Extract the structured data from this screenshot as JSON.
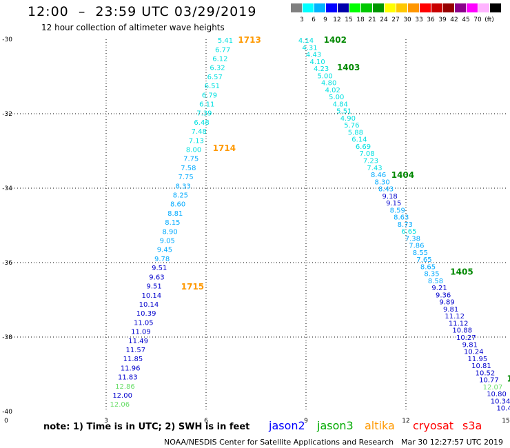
{
  "title": "12:00  –  23:59 UTC 03/29/2019",
  "subtitle": "12 hour collection of altimeter wave heights",
  "legend": {
    "colors": [
      "#808080",
      "#00ffff",
      "#00b4ff",
      "#0000ff",
      "#0000aa",
      "#00ff00",
      "#00c800",
      "#009600",
      "#ffff00",
      "#ffc800",
      "#ff9600",
      "#ff0000",
      "#c80000",
      "#960000",
      "#8b008b",
      "#ff00ff",
      "#ffb4ff",
      "#000000"
    ],
    "levels": [
      "3",
      "6",
      "9",
      "12",
      "15",
      "18",
      "21",
      "24",
      "27",
      "30",
      "33",
      "36",
      "39",
      "42",
      "45",
      "70",
      "(ft)"
    ]
  },
  "note": "note:  1) Time is in UTC;  2) SWH is in feet",
  "satellites": [
    {
      "name": "jason2",
      "color": "#0000ff"
    },
    {
      "name": "jason3",
      "color": "#00aa00"
    },
    {
      "name": "altika",
      "color": "#ff9900"
    },
    {
      "name": "cryosat",
      "color": "#ff0000"
    },
    {
      "name": "s3a",
      "color": "#ff0000"
    }
  ],
  "credit": "NOAA/NESDIS Center for Satellite Applications and Research",
  "timestamp": "Mar 30 12:27:57 UTC 2019",
  "chart_data": {
    "type": "scatter",
    "x_ticks": [
      "0",
      "3",
      "6",
      "9",
      "12",
      "15"
    ],
    "y_ticks": [
      "-30",
      "-32",
      "-34",
      "-36",
      "-38",
      "-40"
    ],
    "xlim": [
      0,
      15
    ],
    "ylim": [
      -40,
      -30
    ],
    "grid": true,
    "value_colors": {
      "low": "#00e0e0",
      "mid": "#00aaff",
      "high": "#0000ff",
      "jason3": "#66dd66"
    },
    "track_labels": [
      {
        "text": "1713",
        "lon": 6.96,
        "lat": -30.02,
        "color": "#ff9900"
      },
      {
        "text": "1714",
        "lon": 6.2,
        "lat": -32.93,
        "color": "#ff9900"
      },
      {
        "text": "1715",
        "lon": 5.25,
        "lat": -36.65,
        "color": "#ff9900"
      },
      {
        "text": "1402",
        "lon": 9.53,
        "lat": -30.02,
        "color": "#008800"
      },
      {
        "text": "1403",
        "lon": 9.93,
        "lat": -30.76,
        "color": "#008800"
      },
      {
        "text": "1404",
        "lon": 11.56,
        "lat": -33.65,
        "color": "#008800"
      },
      {
        "text": "1405",
        "lon": 13.33,
        "lat": -36.25,
        "color": "#008800"
      },
      {
        "text": "14",
        "lon": 15.03,
        "lat": -39.12,
        "color": "#008800"
      }
    ],
    "series": [
      {
        "name": "altika",
        "lon_start": 6.58,
        "lat_start": -30.02,
        "lon_end": 3.41,
        "lat_end": -39.8,
        "values": [
          "5.41",
          "6.77",
          "6.12",
          "6.32",
          "6.57",
          "6.51",
          "6.79",
          "6.11",
          "7.39",
          "6.48",
          "7.48",
          "7.13",
          "8.00",
          "7.75",
          "7.58",
          "7.75",
          "8.33",
          "8.25",
          "8.60",
          "8.81",
          "8.15",
          "8.90",
          "9.05",
          "9.45",
          "9.78",
          "9.51",
          "9.63",
          "9.51",
          "10.14",
          "10.14",
          "10.39",
          "11.05",
          "11.09",
          "11.49",
          "11.57",
          "11.85",
          "11.96",
          "11.83",
          "12.86",
          "12.00",
          "12.06"
        ],
        "value_colors": [
          "#00e0e0",
          "#00e0e0",
          "#00e0e0",
          "#00e0e0",
          "#00e0e0",
          "#00e0e0",
          "#00e0e0",
          "#00e0e0",
          "#00e0e0",
          "#00e0e0",
          "#00e0e0",
          "#00e0e0",
          "#00e0e0",
          "#00aaff",
          "#00aaff",
          "#00aaff",
          "#00aaff",
          "#00aaff",
          "#00aaff",
          "#00aaff",
          "#00aaff",
          "#00aaff",
          "#00aaff",
          "#00aaff",
          "#00aaff",
          "#0000cc",
          "#0000cc",
          "#0000cc",
          "#0000cc",
          "#0000cc",
          "#0000cc",
          "#0000cc",
          "#0000cc",
          "#0000cc",
          "#0000cc",
          "#0000cc",
          "#0000cc",
          "#0000cc",
          "#66dd66",
          "#0000cc",
          "#66dd66"
        ]
      },
      {
        "name": "jason3",
        "lon_start": 9.0,
        "lat_start": -30.02,
        "lon_end": 14.95,
        "lat_end": -39.9,
        "values": [
          "4.14",
          "4.31",
          "4.43",
          "4.10",
          "4.23",
          "5.00",
          "4.80",
          "4.02",
          "5.00",
          "4.84",
          "5.51",
          "4.90",
          "5.76",
          "5.88",
          "6.14",
          "6.69",
          "7.08",
          "7.23",
          "7.43",
          "8.46",
          "8.30",
          "8.43",
          "9.18",
          "9.15",
          "8.59",
          "8.63",
          "8.73",
          "6.65",
          "7.38",
          "7.86",
          "8.55",
          "7.65",
          "8.65",
          "8.35",
          "8.58",
          "9.21",
          "9.36",
          "9.89",
          "9.81",
          "11.12",
          "11.12",
          "10.88",
          "10.27",
          "9.81",
          "10.24",
          "11.95",
          "10.81",
          "10.52",
          "10.77",
          "12.07",
          "10.80",
          "10.34",
          "10.4"
        ],
        "value_colors": [
          "#00e0e0",
          "#00e0e0",
          "#00e0e0",
          "#00e0e0",
          "#00e0e0",
          "#00e0e0",
          "#00e0e0",
          "#00e0e0",
          "#00e0e0",
          "#00e0e0",
          "#00e0e0",
          "#00e0e0",
          "#00e0e0",
          "#00e0e0",
          "#00e0e0",
          "#00e0e0",
          "#00e0e0",
          "#00e0e0",
          "#00e0e0",
          "#00aaff",
          "#00aaff",
          "#00aaff",
          "#0000cc",
          "#0000cc",
          "#00aaff",
          "#00aaff",
          "#00aaff",
          "#00e0e0",
          "#00aaff",
          "#00aaff",
          "#00aaff",
          "#00aaff",
          "#00aaff",
          "#00aaff",
          "#00aaff",
          "#0000cc",
          "#0000cc",
          "#0000cc",
          "#0000cc",
          "#0000cc",
          "#0000cc",
          "#0000cc",
          "#0000cc",
          "#0000cc",
          "#0000cc",
          "#0000cc",
          "#0000cc",
          "#0000cc",
          "#0000cc",
          "#66dd66",
          "#0000cc",
          "#0000cc",
          "#0000cc"
        ]
      }
    ]
  }
}
